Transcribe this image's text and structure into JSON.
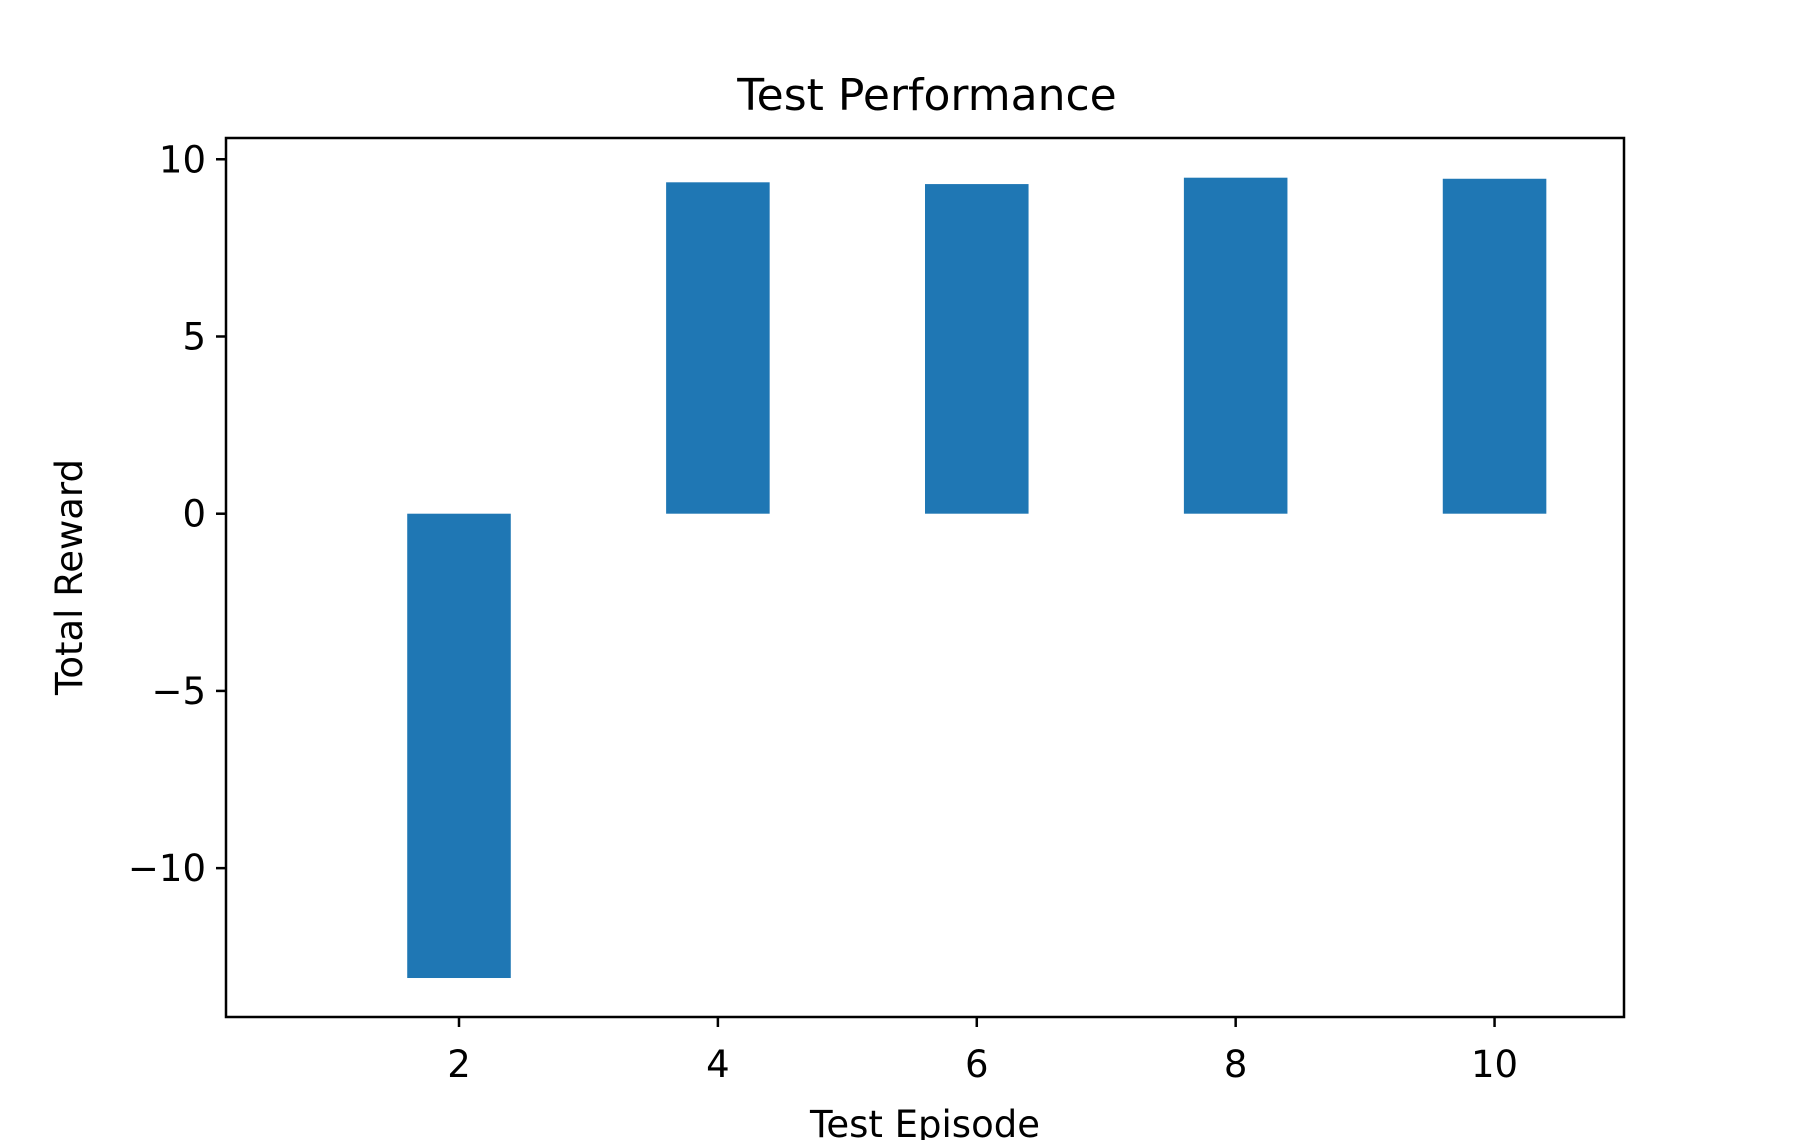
{
  "chart_data": {
    "type": "bar",
    "title": "Test Performance",
    "xlabel": "Test Episode",
    "ylabel": "Total Reward",
    "x": [
      2,
      4,
      6,
      8,
      10
    ],
    "values": [
      -13.1,
      9.35,
      9.3,
      9.48,
      9.45
    ],
    "bar_width": 0.8,
    "xlim": [
      0.2,
      11.0
    ],
    "ylim": [
      -14.2,
      10.6
    ],
    "xticks": [
      2,
      4,
      6,
      8,
      10
    ],
    "xtick_labels": [
      "2",
      "4",
      "6",
      "8",
      "10"
    ],
    "yticks": [
      10,
      5,
      0,
      -5,
      -10
    ],
    "ytick_labels": [
      "10",
      "5",
      "0",
      "−5",
      "−10"
    ],
    "grid": false,
    "legend": "none",
    "bar_color": "#1f77b4"
  }
}
